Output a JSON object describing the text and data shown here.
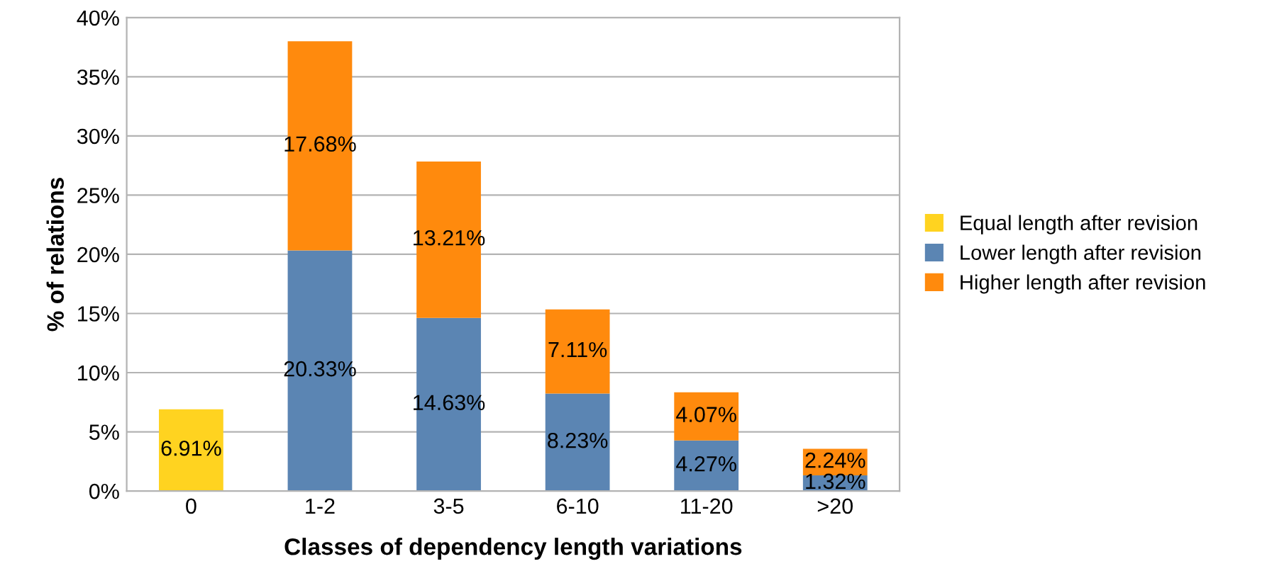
{
  "chart_data": {
    "type": "bar",
    "stacked": true,
    "xlabel": "Classes of dependency length variations",
    "ylabel": "% of relations",
    "categories": [
      "0",
      "1-2",
      "3-5",
      "6-10",
      "11-20",
      ">20"
    ],
    "series": [
      {
        "name": "Equal length after revision",
        "color": "#ffd320",
        "values": [
          6.91,
          null,
          null,
          null,
          null,
          null
        ],
        "value_labels": [
          "6.91%",
          null,
          null,
          null,
          null,
          null
        ]
      },
      {
        "name": "Lower length after revision",
        "color": "#5b85b3",
        "values": [
          null,
          20.33,
          14.63,
          8.23,
          4.27,
          1.32
        ],
        "value_labels": [
          null,
          "20.33%",
          "14.63%",
          "8.23%",
          "4.27%",
          "1.32%"
        ]
      },
      {
        "name": "Higher length after revision",
        "color": "#ff8a0d",
        "values": [
          null,
          17.68,
          13.21,
          7.11,
          4.07,
          2.24
        ],
        "value_labels": [
          null,
          "17.68%",
          "13.21%",
          "7.11%",
          "4.07%",
          "2.24%"
        ]
      }
    ],
    "ylim": [
      0,
      40
    ],
    "yticks": [
      {
        "value": 0,
        "label": "0%"
      },
      {
        "value": 5,
        "label": "5%"
      },
      {
        "value": 10,
        "label": "10%"
      },
      {
        "value": 15,
        "label": "15%"
      },
      {
        "value": 20,
        "label": "20%"
      },
      {
        "value": 25,
        "label": "25%"
      },
      {
        "value": 30,
        "label": "30%"
      },
      {
        "value": 35,
        "label": "35%"
      },
      {
        "value": 40,
        "label": "40%"
      }
    ],
    "grid": "y",
    "legend": "right"
  }
}
